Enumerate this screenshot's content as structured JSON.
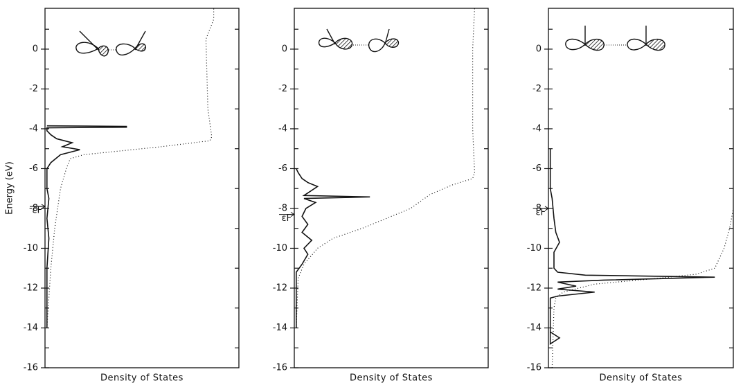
{
  "chart_data": [
    {
      "type": "line",
      "y_label": "Energy (eV)",
      "x_label": "Density of States",
      "ylim": [
        -16,
        2.05
      ],
      "yticks": [
        -16,
        -14,
        -12,
        -10,
        -8,
        -6,
        -4,
        -2,
        0
      ],
      "yminor": [
        -15,
        -13,
        -11,
        -9,
        -7,
        -5,
        -3,
        -1,
        1
      ],
      "xlim": [
        0,
        1
      ],
      "annotation": {
        "text": "εF",
        "y": -7.9
      },
      "series": [
        {
          "line_style": "solid",
          "color": "#111",
          "x": [
            0.01,
            0.01,
            0.02,
            0.01,
            0.02,
            0.01,
            0.01,
            0.03,
            0.08,
            0.18,
            0.09,
            0.14,
            0.06,
            0.03,
            0.01,
            0.01,
            0.42,
            0.42,
            0.01
          ],
          "y": [
            -14,
            -11,
            -9.5,
            -8.5,
            -7.5,
            -7,
            -6,
            -5.7,
            -5.3,
            -5.05,
            -4.9,
            -4.7,
            -4.5,
            -4.3,
            -4.1,
            -3.95,
            -3.92,
            -3.88,
            -3.85
          ]
        },
        {
          "line_style": "dotted",
          "color": "#111",
          "x": [
            0.01,
            0.03,
            0.05,
            0.08,
            0.11,
            0.13,
            0.2,
            0.6,
            0.85,
            0.86,
            0.84,
            0.83,
            0.87,
            0.87
          ],
          "y": [
            -14,
            -11,
            -9,
            -7,
            -6,
            -5.5,
            -5.3,
            -4.9,
            -4.6,
            -4.4,
            -3,
            0.5,
            1.5,
            2.05
          ]
        }
      ]
    },
    {
      "type": "line",
      "x_label": "Density of States",
      "ylim": [
        -16,
        2.05
      ],
      "yticks": [
        -16,
        -14,
        -12,
        -10,
        -8,
        -6,
        -4,
        -2,
        0
      ],
      "yminor": [
        -15,
        -13,
        -11,
        -9,
        -7,
        -5,
        -3,
        -1,
        1
      ],
      "xlim": [
        0,
        1
      ],
      "annotation": {
        "text": "εF",
        "y": -8.3
      },
      "series": [
        {
          "line_style": "solid",
          "color": "#111",
          "x": [
            0.01,
            0.01,
            0.04,
            0.07,
            0.05,
            0.09,
            0.04,
            0.07,
            0.04,
            0.06,
            0.11,
            0.05,
            0.39,
            0.05,
            0.12,
            0.07,
            0.04,
            0.02,
            0.01
          ],
          "y": [
            -14,
            -11.2,
            -10.8,
            -10.3,
            -10,
            -9.6,
            -9.2,
            -8.8,
            -8.4,
            -8,
            -7.7,
            -7.5,
            -7.42,
            -7.35,
            -6.9,
            -6.7,
            -6.5,
            -6.2,
            -6
          ]
        },
        {
          "line_style": "dotted",
          "color": "#111",
          "x": [
            0.01,
            0.02,
            0.05,
            0.12,
            0.2,
            0.35,
            0.5,
            0.6,
            0.7,
            0.82,
            0.92,
            0.93,
            0.92,
            0.92,
            0.93
          ],
          "y": [
            -14,
            -11.5,
            -10.8,
            -10,
            -9.5,
            -9,
            -8.4,
            -8,
            -7.3,
            -6.8,
            -6.5,
            -6.2,
            -4,
            0,
            2.05
          ]
        }
      ]
    },
    {
      "type": "line",
      "x_label": "Density of States",
      "ylim": [
        -16,
        2.05
      ],
      "yticks": [
        -16,
        -14,
        -12,
        -10,
        -8,
        -6,
        -4,
        -2,
        0
      ],
      "yminor": [
        -15,
        -13,
        -11,
        -9,
        -7,
        -5,
        -3,
        -1,
        1
      ],
      "xlim": [
        0,
        1
      ],
      "annotation": {
        "text": "εF",
        "y": -8
      },
      "series": [
        {
          "line_style": "solid",
          "color": "#111",
          "x": [
            0.01,
            0.06,
            0.01,
            0.01,
            0.05,
            0.25,
            0.05,
            0.15,
            0.05,
            0.3,
            0.9,
            0.2,
            0.05,
            0.03,
            0.03,
            0.06,
            0.04,
            0.03,
            0.02,
            0.01,
            0.01
          ],
          "y": [
            -14.2,
            -14.5,
            -14.8,
            -12.5,
            -12.4,
            -12.2,
            -12.05,
            -11.9,
            -11.7,
            -11.6,
            -11.45,
            -11.35,
            -11.2,
            -11,
            -10.2,
            -9.7,
            -9.2,
            -8.5,
            -7.5,
            -7,
            -5
          ]
        },
        {
          "line_style": "dotted",
          "color": "#111",
          "x": [
            0.02,
            0.03,
            0.04,
            0.08,
            0.25,
            0.6,
            0.8,
            0.9,
            0.95,
            0.98,
            1.0
          ],
          "y": [
            -16,
            -13,
            -12.5,
            -12.2,
            -11.8,
            -11.5,
            -11.3,
            -11,
            -10,
            -9,
            -8
          ]
        }
      ]
    }
  ]
}
